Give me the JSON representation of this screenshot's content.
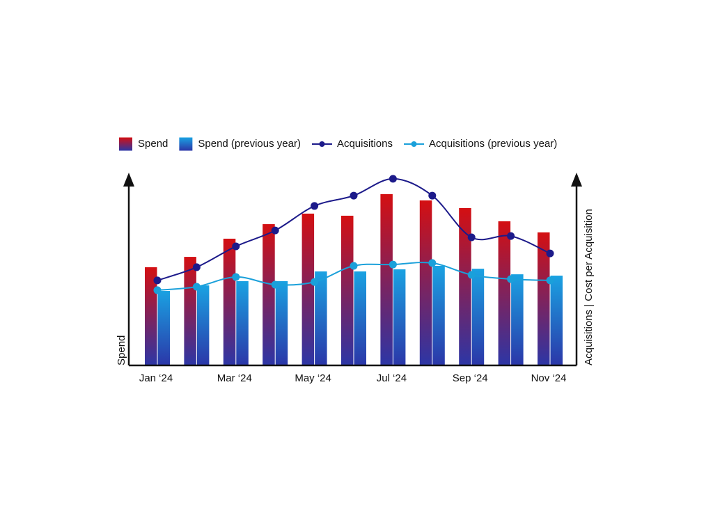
{
  "chart_data": {
    "type": "bar",
    "categories": [
      "Jan ‘24",
      null,
      "Mar ‘24",
      null,
      "May ‘24",
      null,
      "Jul ‘24",
      null,
      "Sep ‘24",
      null,
      "Nov ‘24"
    ],
    "y_label": "Spend",
    "y2_label": "Acquisitions | Cost per Acquisition",
    "ylim": [
      0,
      100
    ],
    "y2lim": [
      0,
      100
    ],
    "series": [
      {
        "name": "Spend",
        "type": "bar",
        "color": "#d40f12",
        "gradient_end": "#2c36a6",
        "values": [
          51.3,
          56.7,
          66.2,
          73.8,
          79.3,
          78.2,
          89.5,
          86.2,
          82.2,
          75.3,
          69.5
        ]
      },
      {
        "name": "Spend (previous year)",
        "type": "bar",
        "color": "#1aa2e2",
        "gradient_end": "#2b36a8",
        "values": [
          38.9,
          41.8,
          44.0,
          44.0,
          49.1,
          49.1,
          50.2,
          52.0,
          50.5,
          47.6,
          46.9
        ]
      },
      {
        "name": "Acquisitions",
        "type": "line",
        "axis": "y2",
        "color": "#1c1a8a",
        "values": [
          44.4,
          51.3,
          62.2,
          70.5,
          83.3,
          88.7,
          97.5,
          88.7,
          66.9,
          67.6,
          58.5
        ]
      },
      {
        "name": "Acquisitions (previous year)",
        "type": "line",
        "axis": "y2",
        "color": "#1aa0da",
        "values": [
          39.3,
          41.1,
          46.2,
          42.2,
          43.6,
          52.0,
          52.7,
          53.5,
          47.3,
          45.1,
          44.4
        ]
      }
    ]
  }
}
